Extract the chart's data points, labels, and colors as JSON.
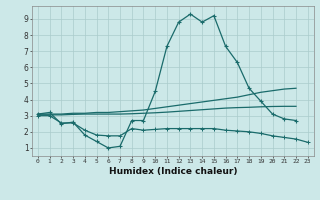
{
  "xlabel": "Humidex (Indice chaleur)",
  "xlim": [
    -0.5,
    23.5
  ],
  "ylim": [
    0.5,
    9.8
  ],
  "xticks": [
    0,
    1,
    2,
    3,
    4,
    5,
    6,
    7,
    8,
    9,
    10,
    11,
    12,
    13,
    14,
    15,
    16,
    17,
    18,
    19,
    20,
    21,
    22,
    23
  ],
  "yticks": [
    1,
    2,
    3,
    4,
    5,
    6,
    7,
    8,
    9
  ],
  "background_color": "#cce8e8",
  "grid_color": "#aacccc",
  "line_color": "#1a6b6b",
  "line1_y": [
    3.1,
    3.2,
    2.5,
    2.6,
    1.8,
    1.4,
    1.0,
    1.1,
    2.7,
    2.7,
    4.5,
    7.3,
    8.8,
    9.3,
    8.8,
    9.2,
    7.3,
    6.3,
    4.7,
    3.9,
    3.1,
    2.8,
    2.7,
    null
  ],
  "line2_y": [
    3.1,
    3.1,
    3.1,
    3.15,
    3.15,
    3.2,
    3.2,
    3.25,
    3.3,
    3.35,
    3.45,
    3.55,
    3.65,
    3.75,
    3.85,
    3.95,
    4.05,
    4.15,
    4.3,
    4.45,
    4.55,
    4.65,
    4.7,
    null
  ],
  "line3_y": [
    3.05,
    3.05,
    3.05,
    3.08,
    3.1,
    3.1,
    3.1,
    3.1,
    3.12,
    3.15,
    3.18,
    3.22,
    3.27,
    3.32,
    3.37,
    3.42,
    3.47,
    3.5,
    3.52,
    3.55,
    3.57,
    3.58,
    3.58,
    null
  ],
  "line4_y": [
    3.0,
    3.0,
    2.55,
    2.55,
    2.1,
    1.8,
    1.75,
    1.75,
    2.2,
    2.1,
    2.15,
    2.2,
    2.2,
    2.2,
    2.2,
    2.2,
    2.1,
    2.05,
    2.0,
    1.9,
    1.75,
    1.65,
    1.55,
    1.35
  ]
}
